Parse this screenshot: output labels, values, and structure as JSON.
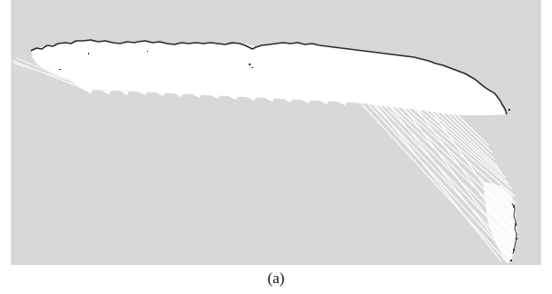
{
  "figure": {
    "caption": "(a)",
    "colors": {
      "unknown_area": "#d8d8d8",
      "free_space": "#ffffff",
      "obstacle": "#2a2a2a",
      "rays": "#f7f7f7"
    }
  }
}
